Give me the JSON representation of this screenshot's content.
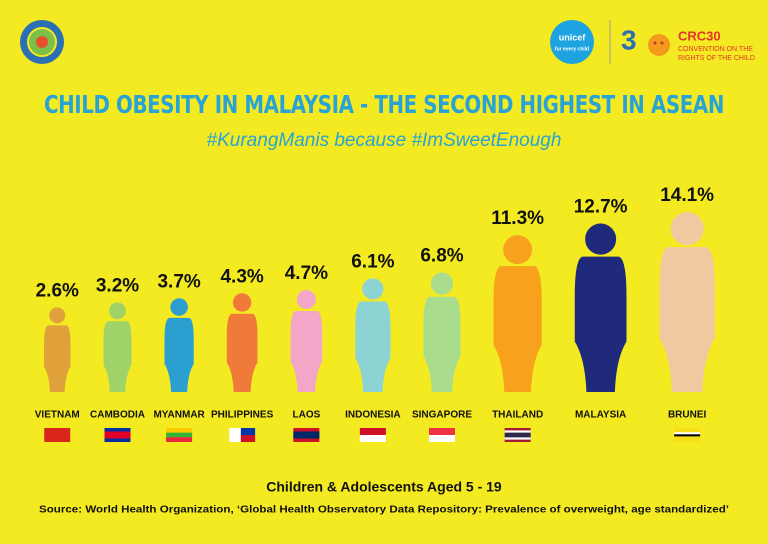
{
  "chart_data": {
    "type": "bar",
    "title": "CHILD OBESITY IN MALAYSIA - THE SECOND HIGHEST IN ASEAN",
    "subtitle": "#KurangManis because #ImSweetEnough",
    "categories": [
      "VIETNAM",
      "CAMBODIA",
      "MYANMAR",
      "PHILIPPINES",
      "LAOS",
      "INDONESIA",
      "SINGAPORE",
      "THAILAND",
      "MALAYSIA",
      "BRUNEI"
    ],
    "values": [
      2.6,
      3.2,
      3.7,
      4.3,
      4.7,
      6.1,
      6.8,
      11.3,
      12.7,
      14.1
    ],
    "value_labels": [
      "2.6%",
      "3.2%",
      "3.7%",
      "4.3%",
      "4.7%",
      "6.1%",
      "6.8%",
      "11.3%",
      "12.7%",
      "14.1%"
    ],
    "colors": [
      "#e0a13a",
      "#9fd36a",
      "#2a9fd0",
      "#f07a3a",
      "#f3a6c8",
      "#8dd3d4",
      "#a9dc8c",
      "#f7a11c",
      "#1f2a7a",
      "#f1c9a1"
    ],
    "axis_label": "Children & Adolescents Aged 5 - 19",
    "source": "Source: World Health Organization, ‘Global Health Observatory Data Repository: Prevalence of overweight, age standardized’",
    "logos": {
      "unicef": "unicef",
      "unicef_tagline": "for every child",
      "crc": "CRC30",
      "crc_tagline": [
        "CONVENTION ON THE",
        "RIGHTS OF THE CHILD"
      ]
    }
  }
}
